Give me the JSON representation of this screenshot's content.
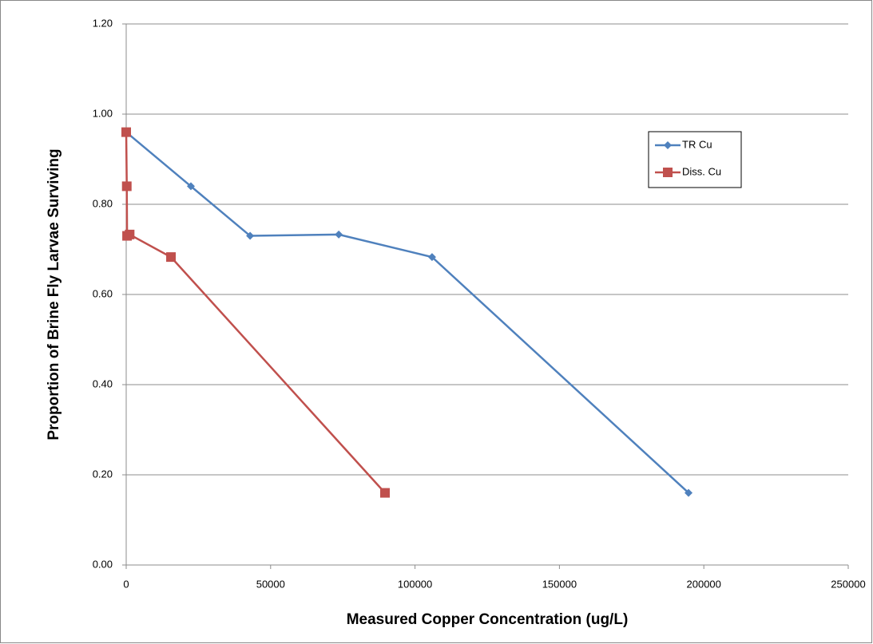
{
  "chart_data": {
    "type": "line",
    "x_label": "Measured Copper Concentration (ug/L)",
    "y_label": "Proportion of Brine Fly Larvae Surviving",
    "xlim": [
      0,
      250000
    ],
    "xticks": [
      0,
      50000,
      100000,
      150000,
      200000,
      250000
    ],
    "ylim": [
      0,
      1.2
    ],
    "yticks": [
      {
        "value": 0,
        "label": "0.00"
      },
      {
        "value": 0.2,
        "label": "0.20"
      },
      {
        "value": 0.4,
        "label": "0.40"
      },
      {
        "value": 0.6,
        "label": "0.60"
      },
      {
        "value": 0.8,
        "label": "0.80"
      },
      {
        "value": 1.0,
        "label": "1.00"
      },
      {
        "value": 1.2,
        "label": "1.20"
      }
    ],
    "grid": true,
    "legend": "right",
    "series": [
      {
        "name": "TR Cu",
        "color": "#4f81bd",
        "marker": "diamond",
        "x": [
          0,
          22400,
          42900,
          73600,
          105900,
          194700
        ],
        "values": [
          0.96,
          0.84,
          0.73,
          0.733,
          0.683,
          0.16
        ]
      },
      {
        "name": "Diss. Cu",
        "color": "#c0504d",
        "marker": "square",
        "x": [
          0,
          200,
          300,
          1200,
          15500,
          89600
        ],
        "values": [
          0.96,
          0.84,
          0.73,
          0.733,
          0.683,
          0.16
        ]
      }
    ]
  }
}
